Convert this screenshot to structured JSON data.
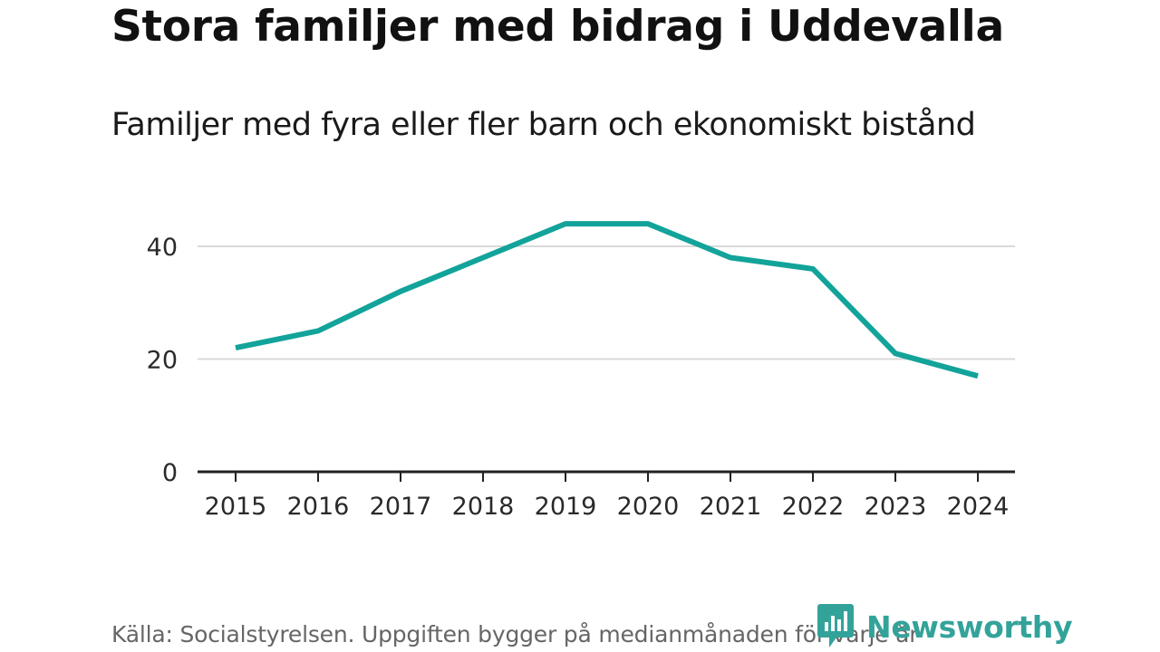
{
  "title": "Stora familjer med bidrag i Uddevalla",
  "subtitle": "Familjer med fyra eller fler barn och ekonomiskt bistånd",
  "footer": {
    "source": "Källa: Socialstyrelsen. Uppgiften bygger på medianmånaden för varje år"
  },
  "brand": {
    "name": "Newsworthy"
  },
  "colors": {
    "line": "#12a39a",
    "grid": "#d9d9d9",
    "axis": "#222222",
    "brand": "#33a39a"
  },
  "chart_data": {
    "type": "line",
    "title": "Familjer med fyra eller fler barn och ekonomiskt bistånd",
    "xlabel": "",
    "ylabel": "",
    "categories": [
      "2015",
      "2016",
      "2017",
      "2018",
      "2019",
      "2020",
      "2021",
      "2022",
      "2023",
      "2024"
    ],
    "series": [
      {
        "name": "Familjer",
        "values": [
          22,
          25,
          32,
          38,
          44,
          44,
          38,
          36,
          21,
          17
        ]
      }
    ],
    "ylim": [
      0,
      48
    ],
    "yticks": [
      0,
      20,
      40
    ],
    "grid": true,
    "legend": "none"
  }
}
